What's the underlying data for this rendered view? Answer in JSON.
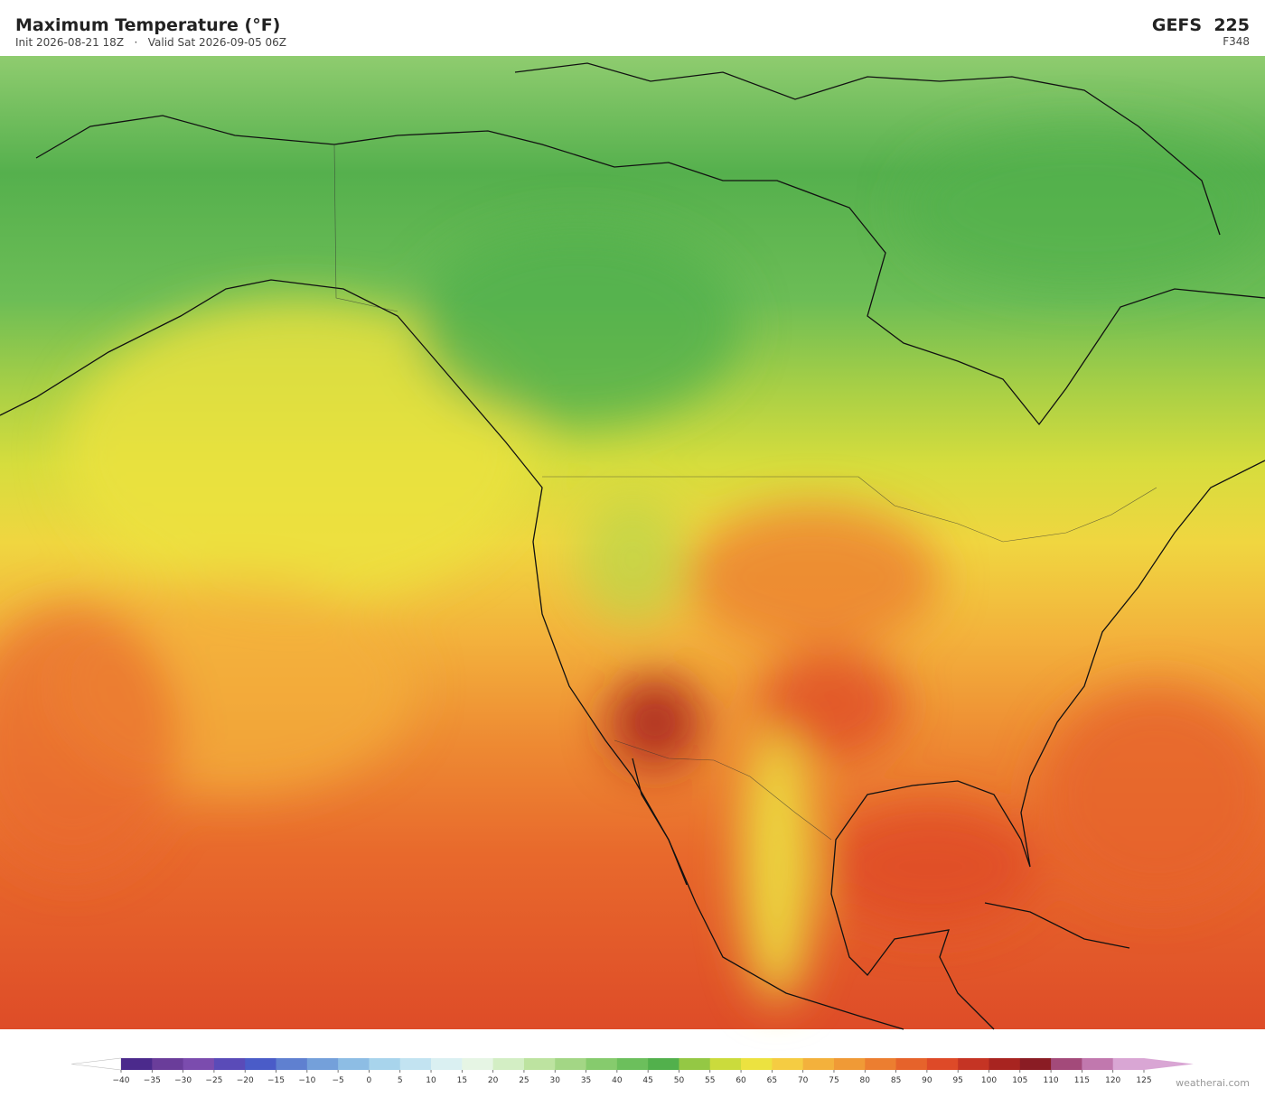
{
  "header": {
    "title": "Maximum Temperature  (°F)",
    "subtitle": "Init 2026-08-21 18Z   ·   Valid Sat 2026-09-05 06Z",
    "model": "GEFS  225",
    "forecast_hour": "F348"
  },
  "colorbar": {
    "ticks": [
      {
        "value": -40,
        "label": "−40"
      },
      {
        "value": -35,
        "label": "−35"
      },
      {
        "value": -30,
        "label": "−30"
      },
      {
        "value": -25,
        "label": "−25"
      },
      {
        "value": -20,
        "label": "−20"
      },
      {
        "value": -15,
        "label": "−15"
      },
      {
        "value": -10,
        "label": "−10"
      },
      {
        "value": -5,
        "label": "−5"
      },
      0,
      5,
      10,
      15,
      20,
      25,
      30,
      35,
      40,
      45,
      50,
      55,
      60,
      65,
      70,
      75,
      80,
      85,
      90,
      95,
      100,
      105,
      110,
      115,
      120,
      125
    ],
    "colors": [
      "#4b2a8c",
      "#6a3d9a",
      "#7b4cae",
      "#5a4bb8",
      "#4a5cc8",
      "#5f80d0",
      "#74a0da",
      "#8dbde4",
      "#a8d4ec",
      "#c2e3f1",
      "#daf0f2",
      "#e6f5e4",
      "#d3eec4",
      "#bde3a0",
      "#a3d685",
      "#86cb6d",
      "#6cbf5c",
      "#52b04c",
      "#94c844",
      "#cbdb3c",
      "#ece240",
      "#f5cc42",
      "#f3b13c",
      "#f09a36",
      "#ec7e30",
      "#e6632b",
      "#de4a28",
      "#c53424",
      "#a82420",
      "#8a1c24",
      "#a34a7a",
      "#c178ae",
      "#d9a6d4"
    ],
    "under_color": "#ffffff",
    "over_color": "#d9a6d4"
  },
  "credit": "weatherai.com"
}
